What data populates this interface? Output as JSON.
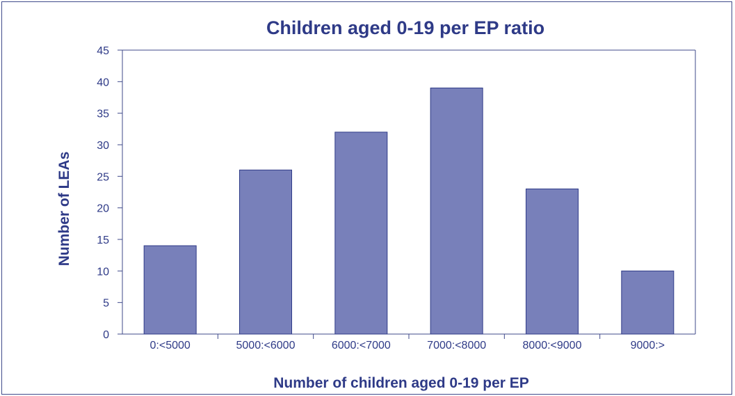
{
  "chart_data": {
    "type": "bar",
    "title": "Children aged 0-19 per EP ratio",
    "xlabel": "Number of children aged 0-19 per EP",
    "ylabel": "Number of LEAs",
    "categories": [
      "0:<5000",
      "5000:<6000",
      "6000:<7000",
      "7000:<8000",
      "8000:<9000",
      "9000:>"
    ],
    "values": [
      14,
      26,
      32,
      39,
      23,
      10
    ],
    "ylim": [
      0,
      45
    ],
    "yticks": [
      0,
      5,
      10,
      15,
      20,
      25,
      30,
      35,
      40,
      45
    ],
    "grid": false,
    "legend": "none",
    "colors": {
      "bar": "#7880ba",
      "bar_edge": "#2e3a87",
      "text": "#2e3a87",
      "axis": "#3f4a8a"
    }
  }
}
